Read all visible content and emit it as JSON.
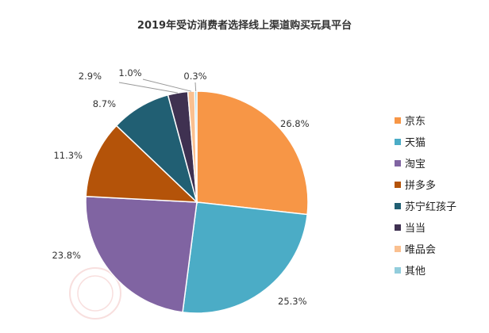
{
  "chart_data": {
    "type": "pie",
    "title": "2019年受访消费者选择线上渠道购买玩具平台",
    "unit": "%",
    "legend_position": "right",
    "start_angle_deg": 0,
    "direction": "clockwise",
    "slices": [
      {
        "name": "京东",
        "value": 26.8,
        "label": "26.8%",
        "color": "#F79646"
      },
      {
        "name": "天猫",
        "value": 25.3,
        "label": "25.3%",
        "color": "#4BACC6"
      },
      {
        "name": "淘宝",
        "value": 23.8,
        "label": "23.8%",
        "color": "#8064A2"
      },
      {
        "name": "拼多多",
        "value": 11.3,
        "label": "11.3%",
        "color": "#B45309"
      },
      {
        "name": "苏宁红孩子",
        "value": 8.7,
        "label": "8.7%",
        "color": "#215F73"
      },
      {
        "name": "当当",
        "value": 2.9,
        "label": "2.9%",
        "color": "#3F3151"
      },
      {
        "name": "唯品会",
        "value": 1.0,
        "label": "1.0%",
        "color": "#FAC090"
      },
      {
        "name": "其他",
        "value": 0.3,
        "label": "0.3%",
        "color": "#92CDDC"
      }
    ]
  }
}
